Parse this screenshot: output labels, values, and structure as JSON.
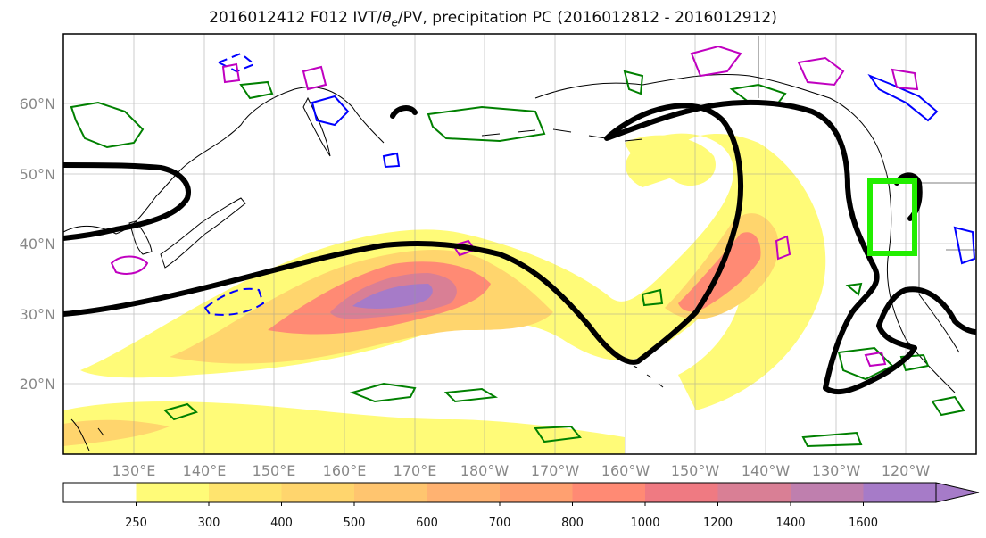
{
  "title": {
    "run": "2016012412 F012 IVT/",
    "theta": "θ",
    "theta_sub": "e",
    "rest": "/PV, precipitation PC (2016012812 - 2016012912)"
  },
  "map": {
    "projection": "cylindrical",
    "lon_range": [
      120,
      250
    ],
    "lat_range": [
      10,
      70
    ],
    "lat_labels": [
      "60°N",
      "50°N",
      "40°N",
      "30°N",
      "20°N"
    ],
    "lon_labels": [
      "130°E",
      "140°E",
      "150°E",
      "160°E",
      "170°E",
      "180°W",
      "170°W",
      "160°W",
      "150°W",
      "140°W",
      "130°W",
      "120°W"
    ],
    "gridlines": true
  },
  "colorbar": {
    "levels": [
      "250",
      "300",
      "400",
      "500",
      "600",
      "700",
      "800",
      "1000",
      "1200",
      "1400",
      "1600"
    ],
    "colors": [
      "#ffffff",
      "#fffb78",
      "#ffe46e",
      "#ffd56d",
      "#ffc56f",
      "#ffb271",
      "#ffa070",
      "#ff8a74",
      "#ef7a82",
      "#d97f95",
      "#bf7fae",
      "#a67bc8"
    ],
    "extend": "max"
  },
  "colors": {
    "pv_contour": "#000000",
    "theta_e_low": "#0000ff",
    "theta_e_high": "#c000c0",
    "precip": "#008000",
    "target_box": "#22ee00"
  }
}
